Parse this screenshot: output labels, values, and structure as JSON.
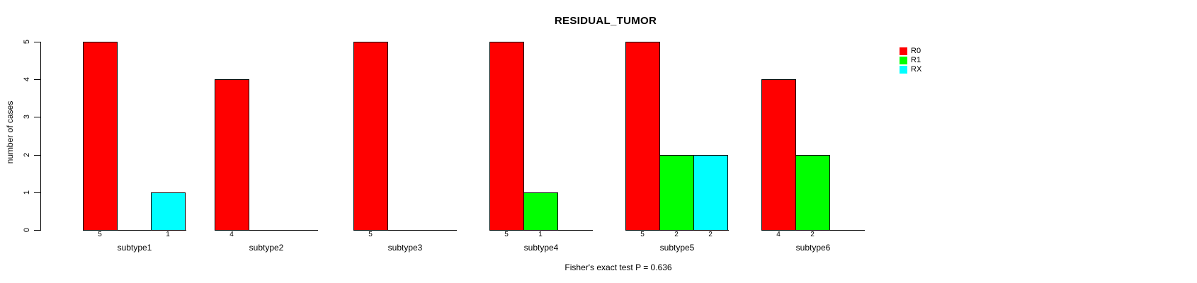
{
  "chart_data": {
    "type": "bar",
    "title": "RESIDUAL_TUMOR",
    "ylabel": "number of cases",
    "xlabel": "",
    "ylim": [
      0,
      5
    ],
    "y_ticks": [
      0,
      1,
      2,
      3,
      4,
      5
    ],
    "grid": false,
    "legend_position": "right-outside",
    "categories": [
      "subtype1",
      "subtype2",
      "subtype3",
      "subtype4",
      "subtype5",
      "subtype6"
    ],
    "series": [
      {
        "name": "R0",
        "color": "#FF0000",
        "values": [
          5,
          4,
          5,
          5,
          5,
          4
        ]
      },
      {
        "name": "R1",
        "color": "#00FF00",
        "values": [
          0,
          0,
          0,
          1,
          2,
          2
        ]
      },
      {
        "name": "RX",
        "color": "#00FFFF",
        "values": [
          1,
          0,
          0,
          0,
          2,
          0
        ]
      }
    ],
    "bar_value_labels": "each non-zero bar is labeled with its value below the baseline; zero bars are unlabeled and leave an empty slot",
    "annotation": "Fisher's exact test P = 0.636"
  },
  "legend": {
    "items": [
      {
        "label": "R0",
        "color": "#FF0000"
      },
      {
        "label": "R1",
        "color": "#00FF00"
      },
      {
        "label": "RX",
        "color": "#00FFFF"
      }
    ]
  }
}
